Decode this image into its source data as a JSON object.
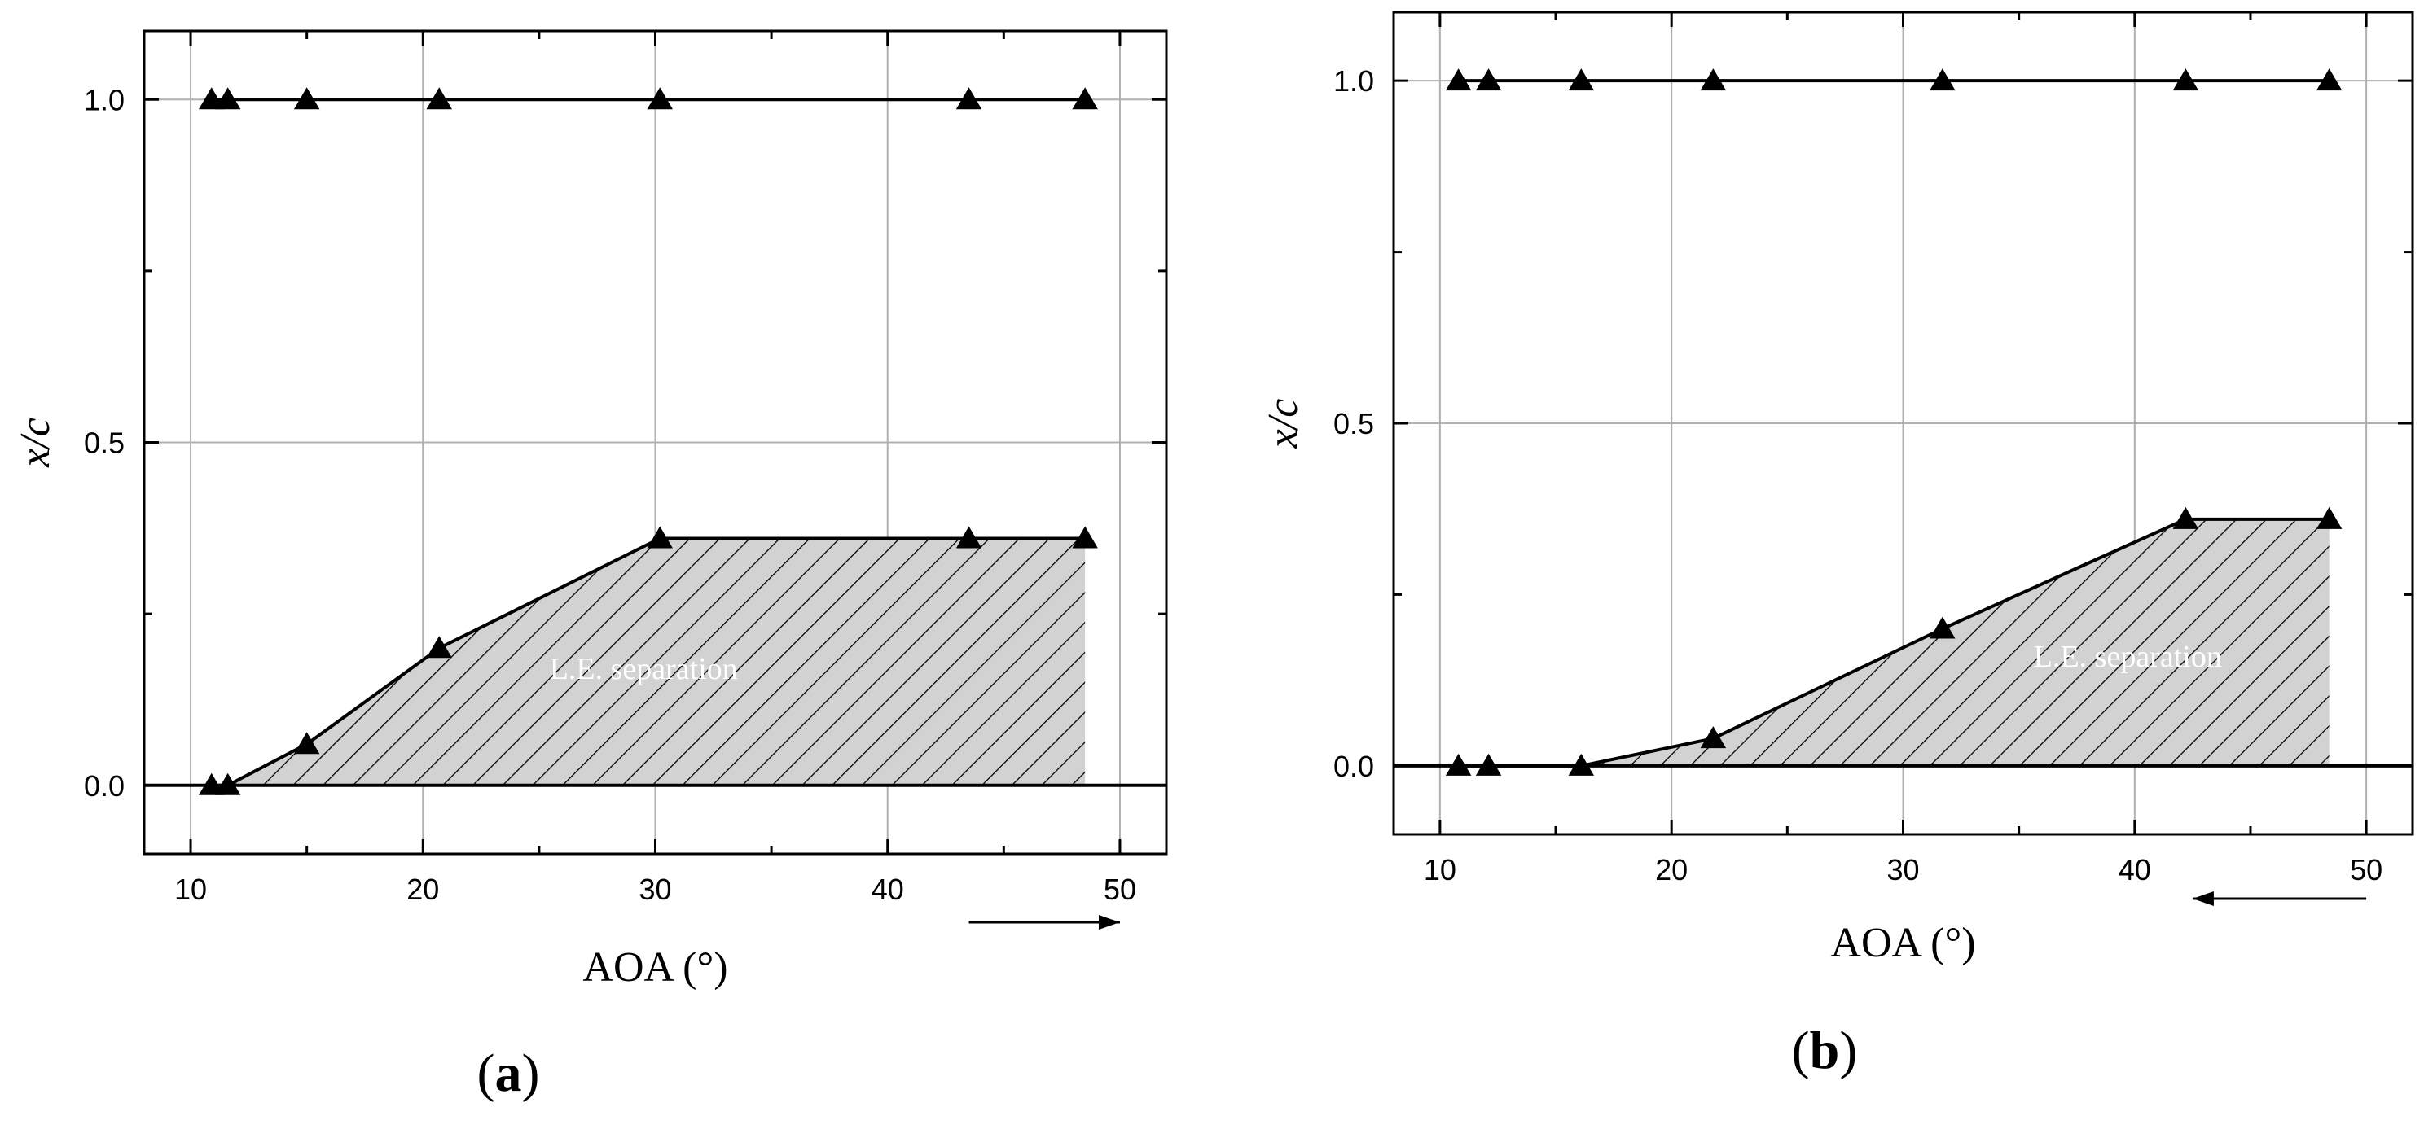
{
  "chart_data": [
    {
      "type": "line",
      "panel_label": "a",
      "xlabel": "AOA (°)",
      "ylabel_italic": "x/c",
      "xlim": [
        8,
        52
      ],
      "ylim": [
        -0.1,
        1.1
      ],
      "xticks": [
        10,
        20,
        30,
        40,
        50
      ],
      "yticks": [
        0.0,
        0.5,
        1.0
      ],
      "ytick_labels": [
        "0.0",
        "0.5",
        "1.0"
      ],
      "grid": true,
      "region_label": "L.E. separation",
      "arrow_direction": "right",
      "series": [
        {
          "x": [
            10.9,
            11.6,
            15,
            20.7,
            30.2,
            43.5,
            48.5
          ],
          "y": [
            1.0,
            1.0,
            1.0,
            1.0,
            1.0,
            1.0,
            1.0
          ]
        },
        {
          "x": [
            10.9,
            11.6,
            15,
            20.7,
            30.2,
            43.5,
            48.5
          ],
          "y": [
            0.0,
            0.0,
            0.06,
            0.2,
            0.36,
            0.36,
            0.36
          ]
        },
        {
          "x": [
            8,
            52
          ],
          "y": [
            0.0,
            0.0
          ]
        }
      ]
    },
    {
      "type": "line",
      "panel_label": "b",
      "xlabel": "AOA (°)",
      "ylabel_italic": "x/c",
      "xlim": [
        8,
        52
      ],
      "ylim": [
        -0.1,
        1.1
      ],
      "xticks": [
        10,
        20,
        30,
        40,
        50
      ],
      "yticks": [
        0.0,
        0.5,
        1.0
      ],
      "ytick_labels": [
        "0.0",
        "0.5",
        "1.0"
      ],
      "grid": true,
      "region_label": "L.E. separation",
      "arrow_direction": "left",
      "series": [
        {
          "x": [
            10.8,
            12.1,
            16.1,
            21.8,
            31.7,
            42.2,
            48.4
          ],
          "y": [
            1.0,
            1.0,
            1.0,
            1.0,
            1.0,
            1.0,
            1.0
          ]
        },
        {
          "x": [
            10.8,
            12.1,
            16.1,
            21.8,
            31.7,
            42.2,
            48.4
          ],
          "y": [
            0.0,
            0.0,
            0.0,
            0.04,
            0.2,
            0.36,
            0.36
          ]
        },
        {
          "x": [
            8,
            52
          ],
          "y": [
            0.0,
            0.0
          ]
        }
      ]
    }
  ]
}
